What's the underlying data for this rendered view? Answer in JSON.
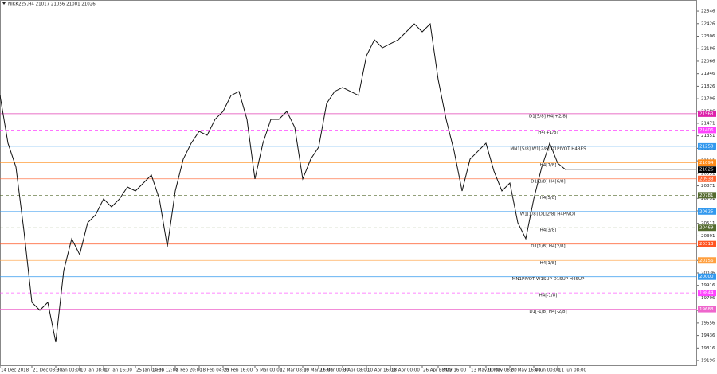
{
  "chart_data": {
    "type": "line",
    "title": "NIKK225,H4  21017 21056 21001 21026",
    "color": "#111111",
    "categories": [
      "14 Dec 2018",
      null,
      null,
      null,
      "21 Dec 08:00",
      null,
      null,
      "3 Jan 00:00",
      null,
      null,
      "10 Jan 08:00",
      null,
      null,
      "17 Jan 16:00",
      null,
      null,
      null,
      "25 Jan 04:00",
      null,
      "1 Feb 12:00",
      null,
      null,
      "8 Feb 20:00",
      null,
      null,
      "18 Feb 04:00",
      null,
      null,
      "25 Feb 16:00",
      null,
      null,
      null,
      "5 Mar 00:00",
      null,
      null,
      "12 Mar 08:00",
      null,
      null,
      "19 Mar 16:00",
      null,
      "27 Mar 00:00",
      null,
      null,
      "3 Apr 08:00",
      null,
      null,
      "10 Apr 16:00",
      null,
      null,
      "18 Apr 00:00",
      null,
      null,
      null,
      "26 Apr 08:00",
      null,
      "3 May 16:00",
      null,
      null,
      null,
      "13 May 00:00",
      null,
      "20 May 08:00",
      null,
      null,
      "27 May 16:00",
      null,
      null,
      "4 Jun 00:00",
      null,
      null,
      "11 Jun 08:00",
      null
    ],
    "values": [
      21738,
      21280,
      21051,
      20441,
      19754,
      19678,
      19754,
      19372,
      20059,
      20364,
      20212,
      20517,
      20593,
      20746,
      20669,
      20746,
      20860,
      20822,
      20898,
      20975,
      20746,
      20288,
      20822,
      21127,
      21280,
      21394,
      21356,
      21509,
      21585,
      21738,
      21776,
      21509,
      20937,
      21280,
      21509,
      21509,
      21585,
      21432,
      20937,
      21127,
      21242,
      21661,
      21776,
      21814,
      21776,
      21738,
      22119,
      22272,
      22195,
      22234,
      22272,
      22348,
      22424,
      22348,
      22424,
      21890,
      21509,
      21204,
      20822,
      21127,
      21204,
      21280,
      21013,
      20822,
      20898,
      20517,
      20364,
      20746,
      21051,
      21280,
      21089,
      21026
    ],
    "ylim": [
      19143,
      22638
    ],
    "yticks": [
      22546,
      22426,
      22306,
      22186,
      22066,
      21946,
      21826,
      21706,
      21586,
      21471,
      21351,
      21231,
      21111,
      20991,
      20871,
      20751,
      20631,
      20511,
      20391,
      20291,
      20156,
      20036,
      19916,
      19796,
      19676,
      19556,
      19436,
      19316,
      19196
    ],
    "levels": [
      {
        "label": "D1[5/8] H4[+2/8]",
        "value": 21563,
        "color": "#dd22aa",
        "dashed": false
      },
      {
        "label": "H4[+1/8]",
        "value": 21406,
        "color": "#ff44ff",
        "dashed": true
      },
      {
        "label": "MN1[5/8] W1[2/8] D1PIVOT H4RES",
        "value": 21250,
        "color": "#3399ee",
        "dashed": false
      },
      {
        "label": "H4[7/8]",
        "value": 21094,
        "color": "#ff8c1a",
        "dashed": false
      },
      {
        "label": "D1[3/8] H4[6/8]",
        "value": 20938,
        "color": "#ff6633",
        "dashed": false
      },
      {
        "label": "H4[5/8]",
        "value": 20781,
        "color": "#556b2f",
        "dashed": true
      },
      {
        "label": "W1[1/8] D1[2/8] H4PIVOT",
        "value": 20625,
        "color": "#3399ee",
        "dashed": false
      },
      {
        "label": "H4[3/8]",
        "value": 20469,
        "color": "#556b2f",
        "dashed": true
      },
      {
        "label": "D1[1/8] H4[2/8]",
        "value": 20313,
        "color": "#ff5522",
        "dashed": false
      },
      {
        "label": "H4[1/8]",
        "value": 20156,
        "color": "#ffa040",
        "dashed": false
      },
      {
        "label": "MN1PIVOT W1SUP D1SUP H4SUP",
        "value": 20000,
        "color": "#3399ee",
        "dashed": false
      },
      {
        "label": "H4[-1/8]",
        "value": 19844,
        "color": "#ff44ff",
        "dashed": true
      },
      {
        "label": "D1[-1/8] H4[-2/8]",
        "value": 19688,
        "color": "#ee66cc",
        "dashed": false
      }
    ],
    "last_price": 21026
  }
}
